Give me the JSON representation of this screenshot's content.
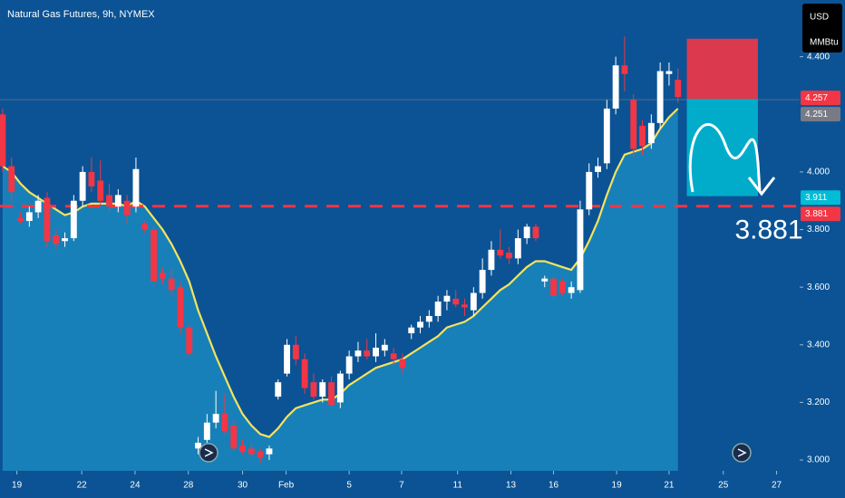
{
  "chart_data": {
    "type": "candlestick",
    "title": "Natural Gas Futures, 9h, NYMEX",
    "currency": "USD",
    "unit": "MMBtu",
    "up_color": "#ffffff",
    "down_color": "#f23645",
    "ylim": [
      2.9625,
      4.5969
    ],
    "yticks": [
      {
        "value": 3,
        "label": "3.000"
      },
      {
        "value": 3.2,
        "label": "3.200"
      },
      {
        "value": 3.4,
        "label": "3.400"
      },
      {
        "value": 3.6,
        "label": "3.600"
      },
      {
        "value": 3.8,
        "label": "3.800"
      },
      {
        "value": 4,
        "label": "4.000"
      },
      {
        "value": 4.4,
        "label": "4.400"
      }
    ],
    "xlim": [
      -0.3,
      89.7
    ],
    "xticks": [
      {
        "value": 1.6,
        "label": "19"
      },
      {
        "value": 8.9,
        "label": "22"
      },
      {
        "value": 14.9,
        "label": "24"
      },
      {
        "value": 20.9,
        "label": "28"
      },
      {
        "value": 27.0,
        "label": "30"
      },
      {
        "value": 31.9,
        "label": "Feb"
      },
      {
        "value": 39.0,
        "label": "5"
      },
      {
        "value": 44.9,
        "label": "7"
      },
      {
        "value": 51.2,
        "label": "11"
      },
      {
        "value": 57.2,
        "label": "13"
      },
      {
        "value": 62.0,
        "label": "16"
      },
      {
        "value": 69.1,
        "label": "19"
      },
      {
        "value": 75.0,
        "label": "21"
      },
      {
        "value": 81.1,
        "label": "25"
      },
      {
        "value": 87.1,
        "label": "27"
      }
    ],
    "open": [
      4.2,
      4.02,
      3.84,
      3.83,
      3.86,
      3.91,
      3.78,
      3.76,
      3.77,
      3.9,
      4.0,
      3.97,
      3.92,
      3.88,
      3.9,
      3.88,
      3.82,
      3.8,
      3.65,
      3.63,
      3.6,
      3.46,
      3.04,
      3.07,
      3.13,
      3.16,
      3.12,
      3.05,
      3.04,
      3.03,
      3.02,
      3.22,
      3.3,
      3.4,
      3.35,
      3.27,
      3.22,
      3.27,
      3.2,
      3.3,
      3.36,
      3.38,
      3.36,
      3.38,
      3.37,
      3.35,
      3.44,
      3.46,
      3.48,
      3.5,
      3.55,
      3.56,
      3.54,
      3.52,
      3.58,
      3.66,
      3.73,
      3.72,
      3.7,
      3.77,
      3.81,
      3.62,
      3.63,
      3.62,
      3.58,
      3.59,
      3.87,
      4.0,
      4.03,
      4.22,
      4.37,
      4.25,
      4.16,
      4.1,
      4.17,
      4.34,
      4.32
    ],
    "high": [
      4.22,
      4.05,
      3.86,
      3.88,
      3.92,
      3.93,
      3.8,
      3.79,
      3.92,
      4.02,
      4.05,
      4.04,
      3.96,
      3.94,
      3.92,
      4.05,
      3.83,
      3.81,
      3.67,
      3.66,
      3.62,
      3.47,
      3.08,
      3.16,
      3.24,
      3.23,
      3.14,
      3.07,
      3.06,
      3.04,
      3.05,
      3.28,
      3.42,
      3.43,
      3.37,
      3.3,
      3.28,
      3.29,
      3.31,
      3.38,
      3.41,
      3.42,
      3.44,
      3.42,
      3.39,
      3.37,
      3.47,
      3.5,
      3.52,
      3.57,
      3.59,
      3.59,
      3.56,
      3.6,
      3.7,
      3.76,
      3.8,
      3.74,
      3.8,
      3.82,
      3.82,
      3.64,
      3.64,
      3.63,
      3.62,
      3.9,
      4.03,
      4.05,
      4.25,
      4.4,
      4.47,
      4.27,
      4.18,
      4.2,
      4.38,
      4.38,
      4.36
    ],
    "low": [
      4.0,
      3.9,
      3.82,
      3.81,
      3.84,
      3.74,
      3.73,
      3.74,
      3.76,
      3.88,
      3.93,
      3.88,
      3.86,
      3.86,
      3.82,
      3.86,
      3.79,
      3.6,
      3.61,
      3.57,
      3.44,
      3.36,
      3.02,
      3.06,
      3.11,
      3.09,
      3.03,
      3.02,
      3.01,
      2.99,
      3.0,
      3.21,
      3.29,
      3.33,
      3.23,
      3.21,
      3.2,
      3.18,
      3.18,
      3.28,
      3.34,
      3.35,
      3.34,
      3.36,
      3.33,
      3.3,
      3.42,
      3.44,
      3.46,
      3.48,
      3.52,
      3.53,
      3.5,
      3.5,
      3.56,
      3.64,
      3.7,
      3.68,
      3.68,
      3.75,
      3.76,
      3.6,
      3.56,
      3.57,
      3.56,
      3.58,
      3.85,
      3.98,
      4.01,
      4.2,
      4.28,
      4.05,
      4.06,
      4.08,
      4.15,
      4.3,
      4.24
    ],
    "close": [
      4.02,
      3.93,
      3.83,
      3.86,
      3.9,
      3.76,
      3.75,
      3.77,
      3.9,
      4.0,
      3.95,
      3.9,
      3.88,
      3.92,
      3.85,
      4.01,
      3.8,
      3.62,
      3.63,
      3.59,
      3.46,
      3.37,
      3.06,
      3.13,
      3.16,
      3.1,
      3.04,
      3.03,
      3.02,
      3.01,
      3.04,
      3.27,
      3.4,
      3.35,
      3.25,
      3.22,
      3.27,
      3.19,
      3.3,
      3.36,
      3.38,
      3.36,
      3.39,
      3.4,
      3.35,
      3.32,
      3.46,
      3.48,
      3.5,
      3.55,
      3.57,
      3.54,
      3.53,
      3.58,
      3.66,
      3.73,
      3.71,
      3.7,
      3.77,
      3.81,
      3.77,
      3.63,
      3.57,
      3.58,
      3.6,
      3.87,
      4.0,
      4.02,
      4.22,
      4.37,
      4.34,
      4.08,
      4.09,
      4.17,
      4.35,
      4.35,
      4.26
    ],
    "series": [
      {
        "color": "#f7e35c",
        "values": [
          4.02,
          4.0,
          3.96,
          3.93,
          3.91,
          3.89,
          3.87,
          3.85,
          3.86,
          3.88,
          3.89,
          3.89,
          3.89,
          3.89,
          3.88,
          3.9,
          3.88,
          3.84,
          3.8,
          3.75,
          3.69,
          3.62,
          3.52,
          3.44,
          3.36,
          3.29,
          3.22,
          3.16,
          3.12,
          3.09,
          3.08,
          3.11,
          3.15,
          3.18,
          3.19,
          3.2,
          3.21,
          3.21,
          3.23,
          3.26,
          3.28,
          3.3,
          3.32,
          3.33,
          3.34,
          3.35,
          3.37,
          3.39,
          3.41,
          3.43,
          3.46,
          3.47,
          3.48,
          3.5,
          3.53,
          3.56,
          3.59,
          3.61,
          3.64,
          3.67,
          3.69,
          3.69,
          3.68,
          3.67,
          3.66,
          3.7,
          3.76,
          3.83,
          3.92,
          4.0,
          4.06,
          4.07,
          4.08,
          4.1,
          4.15,
          4.19,
          4.22
        ]
      }
    ],
    "price_labels": [
      {
        "value": 4.257,
        "color": "#f23645"
      },
      {
        "value": 4.251,
        "color": "#787b86",
        "style": "solid"
      },
      {
        "value": 3.911,
        "color": "#00bcd4"
      },
      {
        "value": 3.881,
        "color": "#f23645",
        "style": "dashed"
      }
    ],
    "position": {
      "from": 77,
      "to": 85,
      "stop": 4.4625,
      "entry": 4.253,
      "target": 3.916
    }
  }
}
